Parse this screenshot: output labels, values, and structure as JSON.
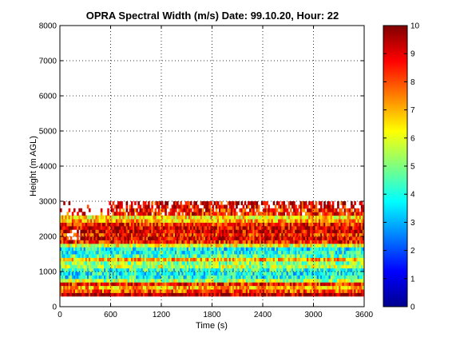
{
  "chart_data": {
    "type": "heatmap",
    "title": "OPRA Spectral Width (m/s)  Date: 99.10.20, Hour: 22",
    "xlabel": "Time (s)",
    "ylabel": "Height (m AGL)",
    "xlim": [
      0,
      3600
    ],
    "ylim": [
      0,
      8000
    ],
    "x_ticks": [
      0,
      600,
      1200,
      1800,
      2400,
      3000,
      3600
    ],
    "x_tick_labels": [
      "0",
      "600",
      "1200",
      "1800",
      "2400",
      "3000",
      "3600"
    ],
    "y_ticks": [
      0,
      1000,
      2000,
      3000,
      4000,
      5000,
      6000,
      7000,
      8000
    ],
    "y_tick_labels": [
      "0",
      "1000",
      "2000",
      "3000",
      "4000",
      "5000",
      "6000",
      "7000",
      "8000"
    ],
    "grid": true,
    "colormap": "jet",
    "colorbar": {
      "range": [
        0,
        10
      ],
      "ticks": [
        0,
        1,
        2,
        3,
        4,
        5,
        6,
        7,
        8,
        9,
        10
      ],
      "tick_labels": [
        "0",
        "1",
        "2",
        "3",
        "4",
        "5",
        "6",
        "7",
        "8",
        "9",
        "10"
      ]
    },
    "data_extent": {
      "x": [
        0,
        3600
      ],
      "y": [
        300,
        3000
      ]
    },
    "height_profile": {
      "heights_m": [
        300,
        400,
        500,
        600,
        700,
        800,
        900,
        1000,
        1100,
        1200,
        1300,
        1400,
        1500,
        1600,
        1700,
        1800,
        1900,
        2000,
        2100,
        2200,
        2300,
        2400,
        2500,
        2600,
        2700,
        2800,
        2900
      ],
      "typical_width_ms": [
        9.5,
        8,
        7,
        8.5,
        5.5,
        4,
        3.8,
        4.2,
        5.5,
        5,
        7,
        4.5,
        4,
        3.8,
        6,
        8.5,
        9,
        8.5,
        9,
        9,
        8.5,
        7,
        6.5,
        8.5,
        8.5,
        9,
        9
      ]
    }
  }
}
